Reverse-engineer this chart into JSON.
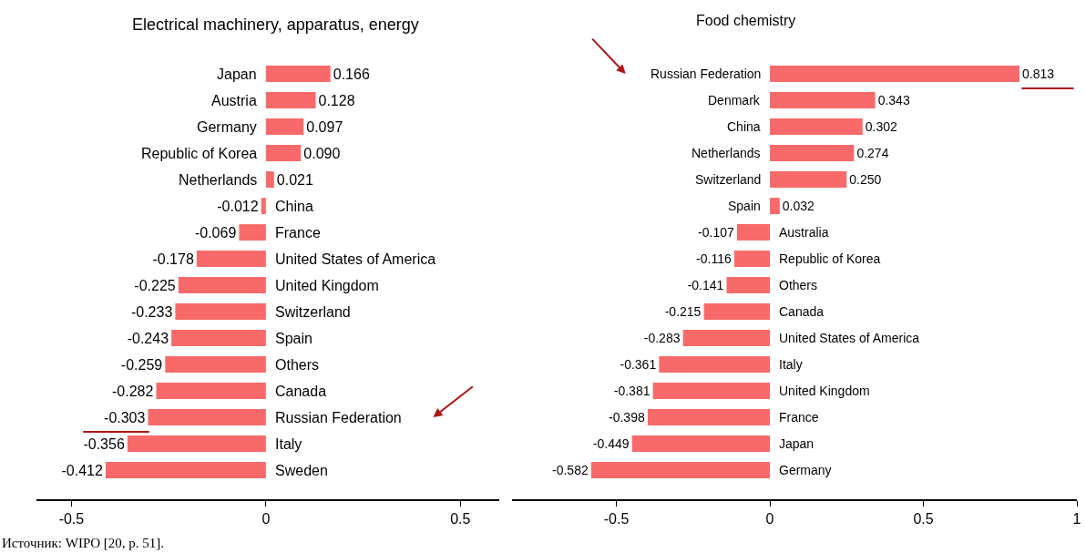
{
  "chart_data": [
    {
      "type": "bar",
      "orientation": "horizontal",
      "title": "Electrical machinery, apparatus, energy",
      "categories": [
        "Japan",
        "Austria",
        "Germany",
        "Republic of Korea",
        "Netherlands",
        "China",
        "France",
        "United States of America",
        "United Kingdom",
        "Switzerland",
        "Spain",
        "Others",
        "Canada",
        "Russian Federation",
        "Italy",
        "Sweden"
      ],
      "values": [
        0.166,
        0.128,
        0.097,
        0.09,
        0.021,
        -0.012,
        -0.069,
        -0.178,
        -0.225,
        -0.233,
        -0.243,
        -0.259,
        -0.282,
        -0.303,
        -0.356,
        -0.412
      ],
      "value_labels": [
        "0.166",
        "0.128",
        "0.097",
        "0.090",
        "0.021",
        "-0.012",
        "-0.069",
        "-0.178",
        "-0.225",
        "-0.233",
        "-0.243",
        "-0.259",
        "-0.282",
        "-0.303",
        "-0.356",
        "-0.412"
      ],
      "color": "#f86a6a",
      "xlim": [
        -0.59,
        0.6
      ],
      "xticks": [
        -0.5,
        0,
        0.5,
        {
          "value": 0.6,
          "label": null
        }
      ],
      "grid": false,
      "annotations": [
        "Источник: WIPO [20, p. 51]."
      ]
    },
    {
      "type": "bar",
      "orientation": "horizontal",
      "title": "Food chemistry",
      "categories": [
        "Russian Federation",
        "Denmark",
        "China",
        "Netherlands",
        "Switzerland",
        "Spain",
        "Australia",
        "Republic of Korea",
        "Others",
        "Canada",
        "United States of America",
        "Italy",
        "United Kingdom",
        "France",
        "Japan",
        "Germany"
      ],
      "values": [
        0.813,
        0.343,
        0.302,
        0.274,
        0.25,
        0.032,
        -0.107,
        -0.116,
        -0.141,
        -0.215,
        -0.283,
        -0.361,
        -0.381,
        -0.398,
        -0.449,
        -0.582
      ],
      "value_labels": [
        "0.813",
        "0.343",
        "0.302",
        "0.274",
        "0.250",
        "0.032",
        "-0.107",
        "-0.116",
        "-0.141",
        "-0.215",
        "-0.283",
        "-0.361",
        "-0.381",
        "-0.398",
        "-0.449",
        "-0.582"
      ],
      "color": "#f86a6a",
      "xlim": [
        -0.84,
        1
      ],
      "xticks": [
        -0.5,
        0,
        0.5,
        1
      ],
      "grid": false
    }
  ]
}
